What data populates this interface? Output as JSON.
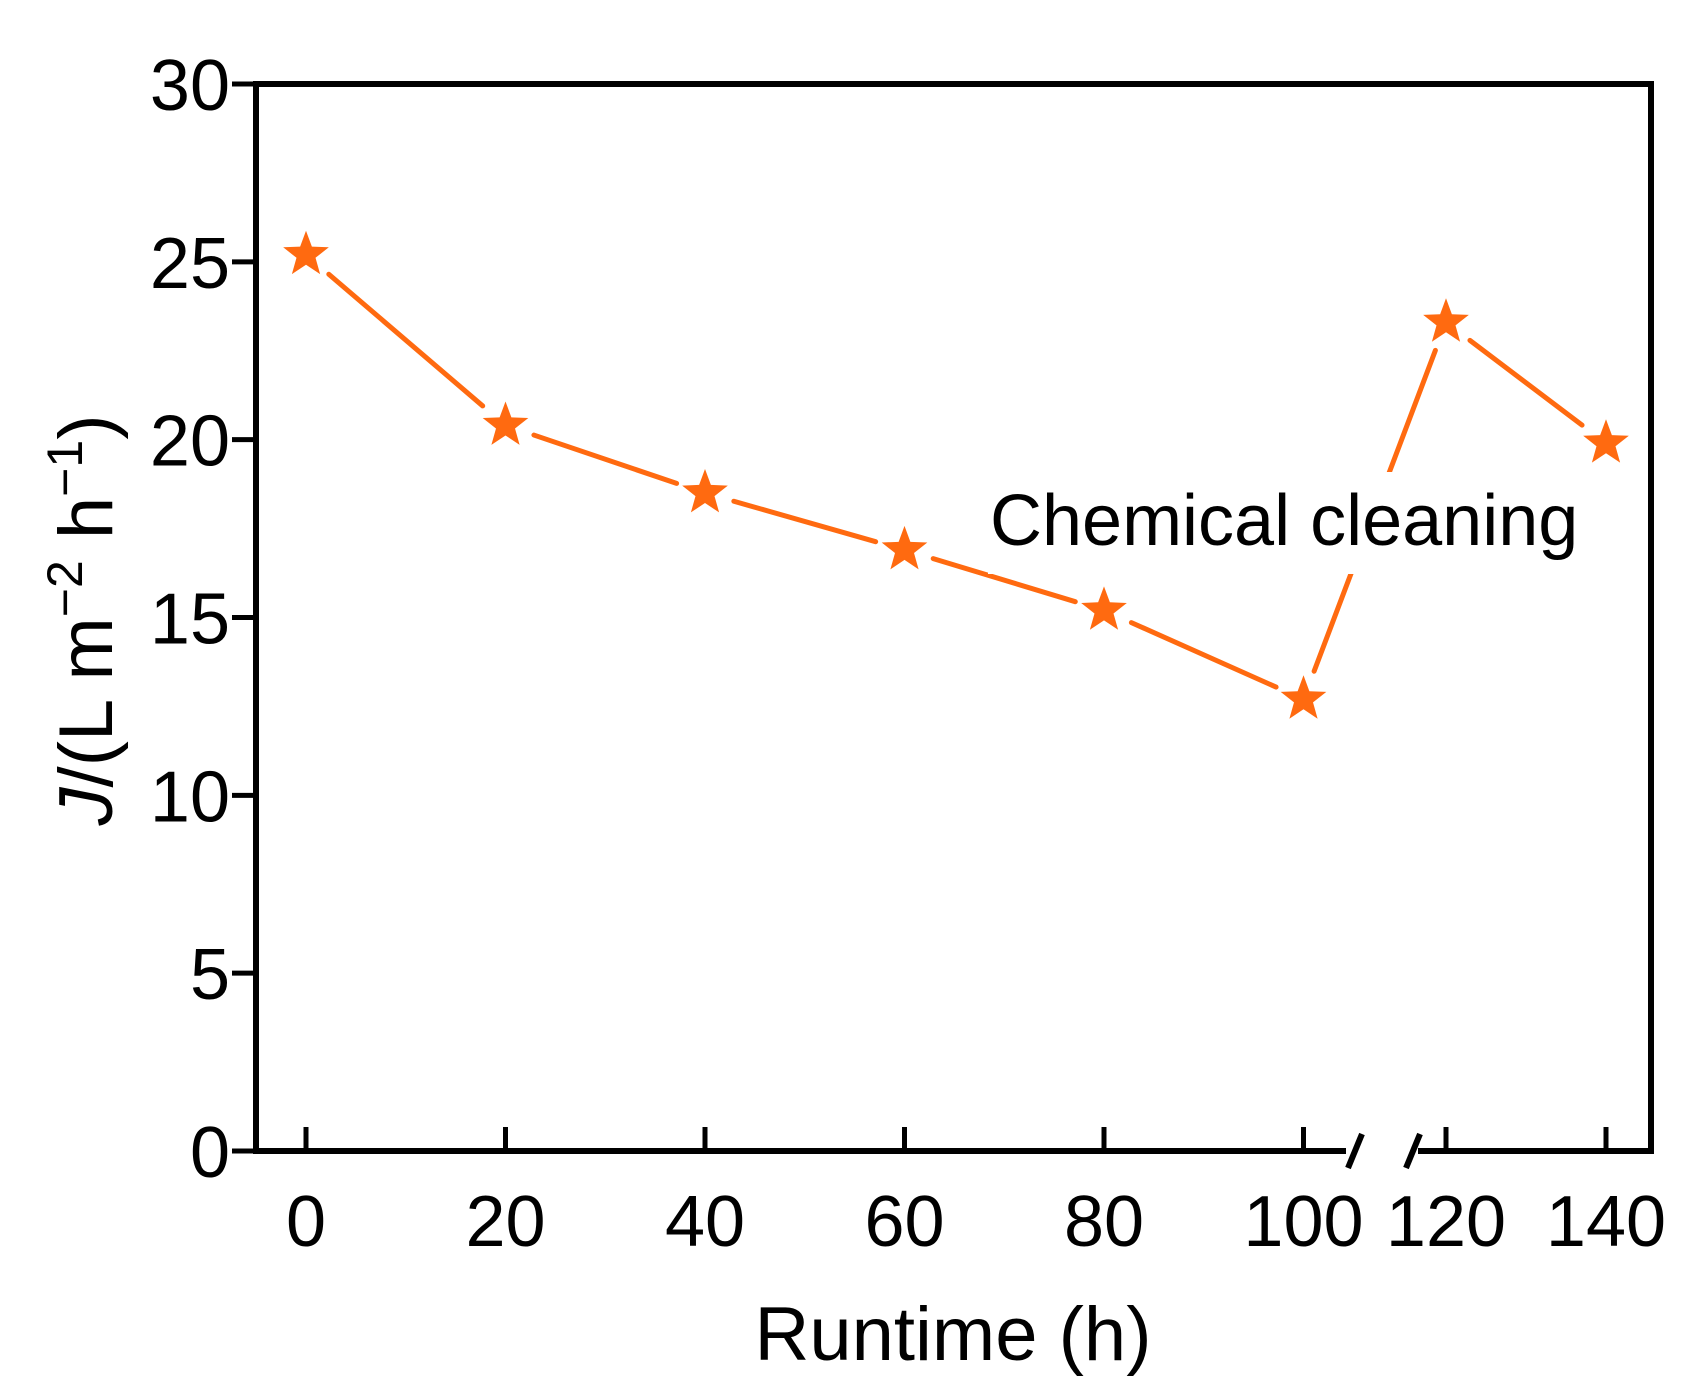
{
  "chart_data": {
    "type": "line",
    "title": "",
    "xlabel": "Runtime (h)",
    "ylabel_parts": {
      "var": "J",
      "sep": "/(L m",
      "exp1": "−2",
      "mid": " h",
      "exp2": "−1",
      "end": ")"
    },
    "x_ticks": [
      "0",
      "20",
      "40",
      "60",
      "80",
      "100",
      "120",
      "140"
    ],
    "y_ticks": [
      "0",
      "5",
      "10",
      "15",
      "20",
      "25",
      "30"
    ],
    "ylim": [
      0,
      30
    ],
    "x_axis_break": "between 100 and 120",
    "color": "#FF6A10",
    "marker": "star",
    "grid": false,
    "series": [
      {
        "points": [
          {
            "x": 0,
            "y": 25.2
          },
          {
            "x": 20,
            "y": 20.4
          },
          {
            "x": 40,
            "y": 18.5
          },
          {
            "x": 60,
            "y": 16.9
          },
          {
            "x": 80,
            "y": 15.2
          },
          {
            "x": 100,
            "y": 12.7
          },
          {
            "x": 120,
            "y": 23.3
          },
          {
            "x": 140,
            "y": 19.9
          }
        ]
      }
    ],
    "annotation": "Chemical cleaning"
  }
}
